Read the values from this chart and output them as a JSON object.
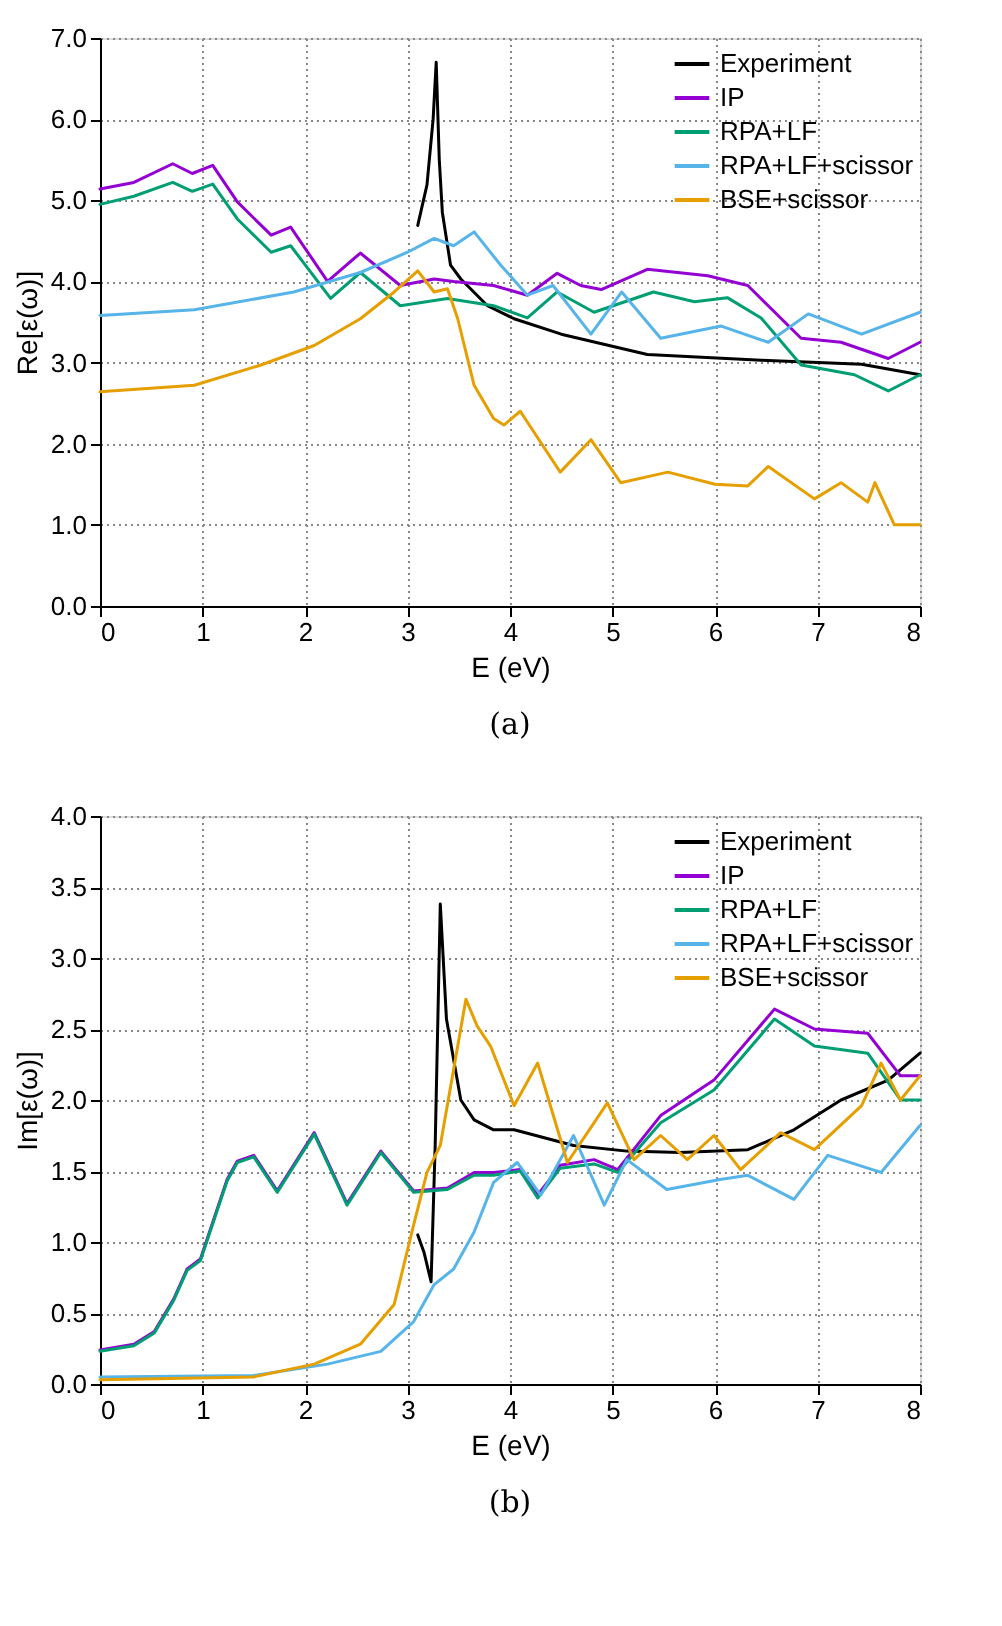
{
  "chart_data": [
    {
      "type": "line",
      "xlabel": "E (eV)",
      "ylabel": "Re[ε(ω)]",
      "annotations": [
        "(a)"
      ],
      "xlim": [
        0,
        8
      ],
      "ylim": [
        0,
        7
      ],
      "xticks": [
        0,
        1,
        2,
        3,
        4,
        5,
        6,
        7,
        8
      ],
      "yticks": [
        {
          "value": 0,
          "label": "0.0"
        },
        {
          "value": 1,
          "label": "1.0"
        },
        {
          "value": 2,
          "label": "2.0"
        },
        {
          "value": 3,
          "label": "3.0"
        },
        {
          "value": 4,
          "label": "4.0"
        },
        {
          "value": 5,
          "label": "5.0"
        },
        {
          "value": 6,
          "label": "6.0"
        },
        {
          "value": 7,
          "label": "7.0"
        }
      ],
      "grid": true,
      "legend": "top right",
      "line_style": "solid",
      "marker": "none",
      "series": [
        {
          "name": "Experiment",
          "color": "#000000",
          "x": [
            3.1,
            3.19,
            3.25,
            3.28,
            3.31,
            3.34,
            3.42,
            3.52,
            3.78,
            4.04,
            4.5,
            5.34,
            6.45,
            7.43,
            8.0
          ],
          "values": [
            4.69,
            5.19,
            6.0,
            6.7,
            5.5,
            4.85,
            4.2,
            4.03,
            3.7,
            3.54,
            3.35,
            3.1,
            3.03,
            2.98,
            2.85
          ]
        },
        {
          "name": "IP",
          "color": "#9400d3",
          "x": [
            0,
            0.33,
            0.71,
            0.9,
            1.1,
            1.34,
            1.67,
            1.86,
            2.22,
            2.54,
            2.93,
            3.26,
            3.45,
            3.84,
            4.17,
            4.46,
            4.69,
            4.89,
            5.34,
            5.93,
            6.32,
            6.84,
            7.23,
            7.69,
            8.0
          ],
          "values": [
            5.14,
            5.22,
            5.45,
            5.33,
            5.43,
            4.98,
            4.57,
            4.67,
            4.0,
            4.35,
            3.95,
            4.03,
            4.0,
            3.95,
            3.83,
            4.1,
            3.95,
            3.9,
            4.15,
            4.07,
            3.95,
            3.3,
            3.25,
            3.05,
            3.25
          ]
        },
        {
          "name": "RPA+LF",
          "color": "#009e73",
          "x": [
            0,
            0.33,
            0.71,
            0.9,
            1.1,
            1.34,
            1.67,
            1.86,
            2.25,
            2.54,
            2.93,
            3.39,
            3.84,
            4.17,
            4.46,
            4.82,
            5.4,
            5.8,
            6.12,
            6.45,
            6.84,
            7.36,
            7.69,
            8.0
          ],
          "values": [
            4.95,
            5.05,
            5.22,
            5.11,
            5.2,
            4.77,
            4.36,
            4.44,
            3.79,
            4.11,
            3.7,
            3.79,
            3.7,
            3.55,
            3.87,
            3.62,
            3.87,
            3.75,
            3.8,
            3.55,
            2.97,
            2.85,
            2.65,
            2.85
          ]
        },
        {
          "name": "RPA+LF+scissor",
          "color": "#56b4e9",
          "x": [
            0,
            0.92,
            1.89,
            2.54,
            3.0,
            3.26,
            3.45,
            3.65,
            3.91,
            4.17,
            4.42,
            4.79,
            5.09,
            5.47,
            6.06,
            6.52,
            6.91,
            7.43,
            8.0
          ],
          "values": [
            3.58,
            3.65,
            3.87,
            4.11,
            4.36,
            4.53,
            4.44,
            4.61,
            4.2,
            3.83,
            3.95,
            3.35,
            3.87,
            3.3,
            3.45,
            3.25,
            3.6,
            3.35,
            3.62
          ]
        },
        {
          "name": "BSE+scissor",
          "color": "#e69f00",
          "x": [
            0,
            0.92,
            1.57,
            2.09,
            2.54,
            2.87,
            3.1,
            3.26,
            3.39,
            3.49,
            3.65,
            3.84,
            3.94,
            4.1,
            4.49,
            4.79,
            5.08,
            5.54,
            6.0,
            6.32,
            6.52,
            6.97,
            7.23,
            7.49,
            7.56,
            7.75,
            8.0
          ],
          "values": [
            2.64,
            2.72,
            2.97,
            3.21,
            3.54,
            3.87,
            4.13,
            3.87,
            3.91,
            3.54,
            2.72,
            2.31,
            2.23,
            2.4,
            1.65,
            2.05,
            1.52,
            1.65,
            1.5,
            1.48,
            1.72,
            1.32,
            1.52,
            1.28,
            1.52,
            1.0,
            1.0
          ]
        }
      ]
    },
    {
      "type": "line",
      "xlabel": "E (eV)",
      "ylabel": "Im[ε(ω)]",
      "annotations": [
        "(b)"
      ],
      "xlim": [
        0,
        8
      ],
      "ylim": [
        0,
        4
      ],
      "xticks": [
        0,
        1,
        2,
        3,
        4,
        5,
        6,
        7,
        8
      ],
      "yticks": [
        {
          "value": 0,
          "label": "0.0"
        },
        0.5,
        {
          "value": 1,
          "label": "1.0"
        },
        1.5,
        {
          "value": 2,
          "label": "2.0"
        },
        2.5,
        {
          "value": 3,
          "label": "3.0"
        },
        3.5,
        {
          "value": 4,
          "label": "4.0"
        }
      ],
      "grid": true,
      "legend": "top right",
      "line_style": "solid",
      "marker": "none",
      "series": [
        {
          "name": "Experiment",
          "color": "#000000",
          "x": [
            3.1,
            3.16,
            3.23,
            3.27,
            3.32,
            3.38,
            3.52,
            3.65,
            3.84,
            4.04,
            4.62,
            5.14,
            5.66,
            6.32,
            6.77,
            7.23,
            7.69,
            8.0
          ],
          "values": [
            1.05,
            0.93,
            0.72,
            1.68,
            3.38,
            2.57,
            2.0,
            1.86,
            1.79,
            1.79,
            1.68,
            1.64,
            1.63,
            1.65,
            1.79,
            2.0,
            2.14,
            2.33
          ]
        },
        {
          "name": "IP",
          "color": "#9400d3",
          "x": [
            0,
            0.33,
            0.53,
            0.72,
            0.85,
            0.98,
            1.24,
            1.34,
            1.5,
            1.73,
            2.09,
            2.41,
            2.74,
            3.06,
            3.39,
            3.65,
            3.84,
            4.1,
            4.27,
            4.49,
            4.82,
            5.05,
            5.47,
            5.99,
            6.58,
            6.97,
            7.49,
            7.81,
            8.0
          ],
          "values": [
            0.24,
            0.28,
            0.37,
            0.6,
            0.81,
            0.88,
            1.44,
            1.57,
            1.61,
            1.36,
            1.77,
            1.27,
            1.64,
            1.36,
            1.38,
            1.49,
            1.49,
            1.51,
            1.33,
            1.54,
            1.58,
            1.51,
            1.89,
            2.14,
            2.64,
            2.5,
            2.47,
            2.17,
            2.17
          ]
        },
        {
          "name": "RPA+LF",
          "color": "#009e73",
          "x": [
            0,
            0.33,
            0.53,
            0.72,
            0.85,
            0.98,
            1.24,
            1.34,
            1.5,
            1.73,
            2.09,
            2.41,
            2.74,
            3.06,
            3.39,
            3.65,
            3.84,
            4.1,
            4.27,
            4.49,
            4.82,
            5.05,
            5.47,
            5.99,
            6.58,
            6.97,
            7.49,
            7.81,
            8.0
          ],
          "values": [
            0.23,
            0.27,
            0.36,
            0.59,
            0.8,
            0.87,
            1.43,
            1.56,
            1.6,
            1.35,
            1.76,
            1.26,
            1.63,
            1.35,
            1.37,
            1.47,
            1.47,
            1.5,
            1.31,
            1.52,
            1.55,
            1.49,
            1.84,
            2.07,
            2.57,
            2.38,
            2.33,
            2.0,
            2.0
          ]
        },
        {
          "name": "RPA+LF+scissor",
          "color": "#56b4e9",
          "x": [
            0,
            1.5,
            2.22,
            2.74,
            3.06,
            3.26,
            3.45,
            3.65,
            3.84,
            4.07,
            4.3,
            4.62,
            4.92,
            5.14,
            5.53,
            6.05,
            6.32,
            6.77,
            7.1,
            7.62,
            8.0
          ],
          "values": [
            0.05,
            0.06,
            0.14,
            0.23,
            0.44,
            0.7,
            0.81,
            1.07,
            1.42,
            1.56,
            1.33,
            1.75,
            1.26,
            1.58,
            1.37,
            1.44,
            1.47,
            1.3,
            1.61,
            1.49,
            1.82
          ]
        },
        {
          "name": "BSE+scissor",
          "color": "#e69f00",
          "x": [
            0,
            1.5,
            2.09,
            2.54,
            2.87,
            3.06,
            3.19,
            3.32,
            3.49,
            3.57,
            3.68,
            3.81,
            4.04,
            4.27,
            4.56,
            4.95,
            5.21,
            5.47,
            5.73,
            5.99,
            6.25,
            6.64,
            6.97,
            7.43,
            7.62,
            7.81,
            8.0
          ],
          "values": [
            0.03,
            0.05,
            0.14,
            0.28,
            0.56,
            1.12,
            1.49,
            1.68,
            2.38,
            2.71,
            2.52,
            2.38,
            1.96,
            2.26,
            1.56,
            1.98,
            1.58,
            1.75,
            1.58,
            1.75,
            1.51,
            1.77,
            1.65,
            1.96,
            2.26,
            2.0,
            2.17
          ]
        }
      ]
    }
  ]
}
